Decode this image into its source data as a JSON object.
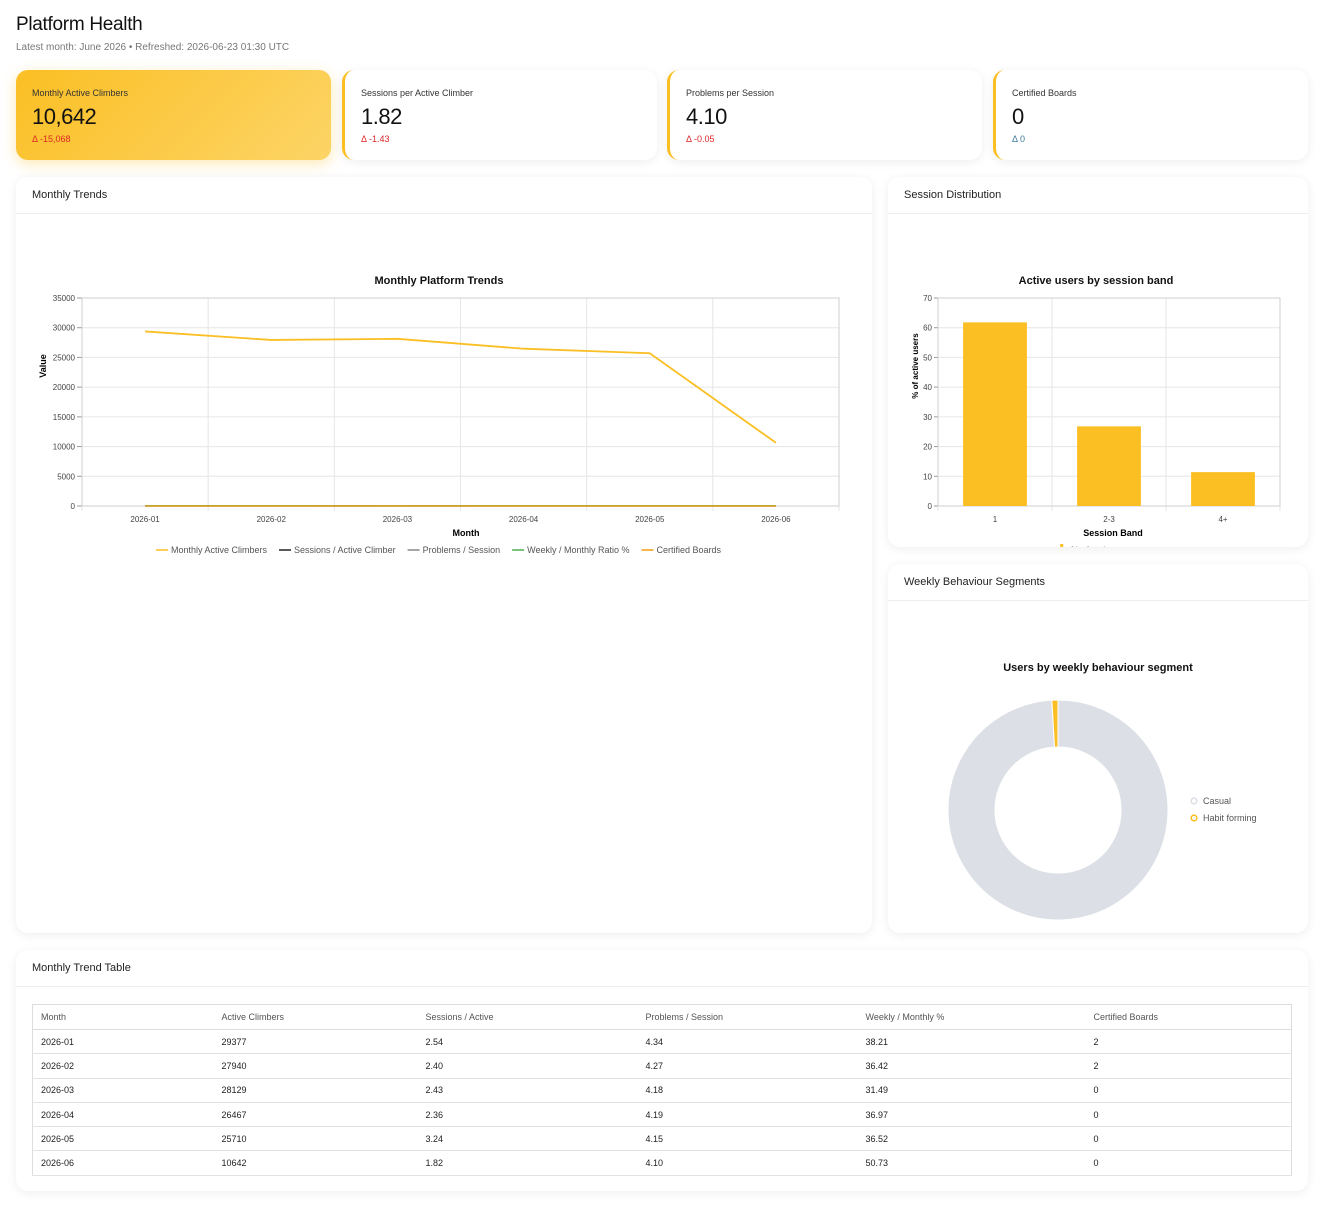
{
  "header": {
    "title": "Platform Health",
    "subtitle": "Latest month: June 2026 • Refreshed: 2026-06-23 01:30 UTC"
  },
  "kpis": [
    {
      "label": "Monthly Active Climbers",
      "value": "10,642",
      "delta": "Δ -15,068"
    },
    {
      "label": "Sessions per Active Climber",
      "value": "1.82",
      "delta": "Δ -1.43"
    },
    {
      "label": "Problems per Session",
      "value": "4.10",
      "delta": "Δ -0.05"
    },
    {
      "label": "Certified Boards",
      "value": "0",
      "delta": "Δ 0"
    }
  ],
  "panels": {
    "trends": "Monthly Trends",
    "distribution": "Session Distribution",
    "segments": "Weekly Behaviour Segments",
    "table": "Monthly Trend Table"
  },
  "colors": {
    "accent": "#fbbf24",
    "negative": "#dc2626",
    "donut_casual": "#dcdfe5",
    "line_sessions": "#222222",
    "line_problems": "#888888",
    "line_weekly": "#4caf50",
    "line_boards": "#f59e0b"
  },
  "chart_data": [
    {
      "type": "line",
      "title": "Monthly Platform Trends",
      "xlabel": "Month",
      "ylabel": "Value",
      "x": [
        "2026-01",
        "2026-02",
        "2026-03",
        "2026-04",
        "2026-05",
        "2026-06"
      ],
      "ylim": [
        0,
        35000
      ],
      "yticks": [
        "0",
        "5000",
        "10000",
        "15000",
        "20000",
        "25000",
        "30000",
        "35000"
      ],
      "grid": true,
      "legend": "bottom",
      "series": [
        {
          "name": "Monthly Active Climbers",
          "values": [
            29377,
            27940,
            28129,
            26467,
            25710,
            10642
          ]
        },
        {
          "name": "Sessions / Active Climber",
          "values": [
            2.54,
            2.4,
            2.43,
            2.36,
            3.24,
            1.82
          ]
        },
        {
          "name": "Problems / Session",
          "values": [
            4.34,
            4.27,
            4.18,
            4.19,
            4.15,
            4.1
          ]
        },
        {
          "name": "Weekly / Monthly Ratio %",
          "values": [
            38.21,
            36.42,
            31.49,
            36.97,
            36.52,
            50.73
          ]
        },
        {
          "name": "Certified Boards",
          "values": [
            2,
            2,
            0,
            0,
            0,
            0
          ]
        }
      ]
    },
    {
      "type": "bar",
      "title": "Active users by session band",
      "xlabel": "Session Band",
      "ylabel": "% of active users",
      "categories": [
        "1",
        "2-3",
        "4+"
      ],
      "ylim": [
        0,
        70
      ],
      "yticks": [
        "0",
        "10",
        "20",
        "30",
        "40",
        "50",
        "60",
        "70"
      ],
      "grid": true,
      "legend": "bottom",
      "series": [
        {
          "name": "% of active users",
          "values": [
            61.8,
            26.8,
            11.4
          ]
        }
      ]
    },
    {
      "type": "pie",
      "title": "Users by weekly behaviour segment",
      "legend": "right",
      "labels": [
        "Casual",
        "Habit forming"
      ],
      "values": [
        99.1,
        0.9
      ]
    }
  ],
  "table": {
    "columns": [
      "Month",
      "Active Climbers",
      "Sessions / Active",
      "Problems / Session",
      "Weekly / Monthly %",
      "Certified Boards"
    ],
    "rows": [
      [
        "2026-01",
        "29377",
        "2.54",
        "4.34",
        "38.21",
        "2"
      ],
      [
        "2026-02",
        "27940",
        "2.40",
        "4.27",
        "36.42",
        "2"
      ],
      [
        "2026-03",
        "28129",
        "2.43",
        "4.18",
        "31.49",
        "0"
      ],
      [
        "2026-04",
        "26467",
        "2.36",
        "4.19",
        "36.97",
        "0"
      ],
      [
        "2026-05",
        "25710",
        "3.24",
        "4.15",
        "36.52",
        "0"
      ],
      [
        "2026-06",
        "10642",
        "1.82",
        "4.10",
        "50.73",
        "0"
      ]
    ]
  }
}
